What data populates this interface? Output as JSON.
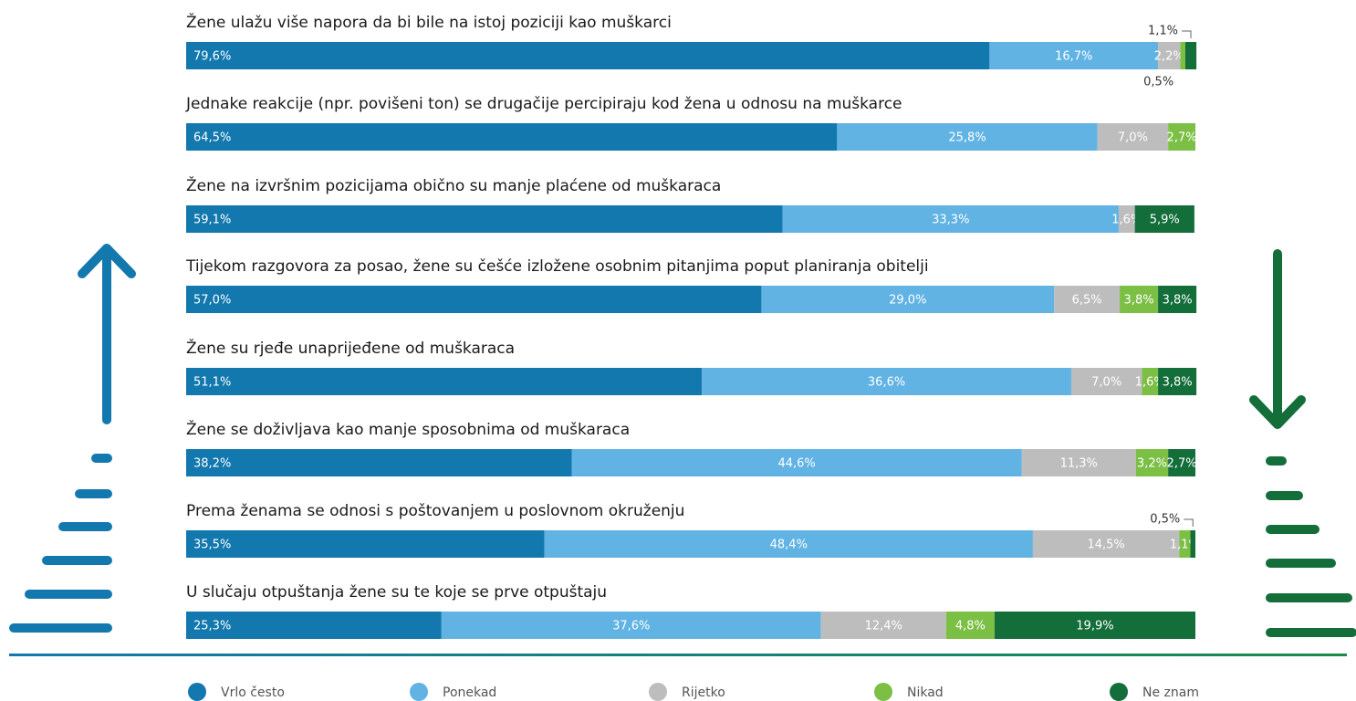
{
  "chart_data": {
    "type": "stacked-bar-100",
    "categories": [
      "Žene ulažu više napora da bi bile na istoj poziciji kao muškarci",
      "Jednake reakcije (npr. povišeni ton) se drugačije percipiraju kod žena u odnosu na muškarce",
      "Žene na izvršnim pozicijama obično su manje plaćene od muškaraca",
      "Tijekom razgovora za posao, žene su češće izložene osobnim pitanjima poput planiranja obitelji",
      "Žene su rjeđe unaprijeđene od muškaraca",
      "Žene se doživljava kao manje sposobnima od muškaraca",
      "Prema ženama se odnosi s poštovanjem u poslovnom okruženju",
      "U slučaju otpuštanja žene su te koje se prve otpuštaju"
    ],
    "xlim": [
      0,
      100
    ],
    "series": [
      {
        "name": "Vrlo često",
        "color": "#1378ae",
        "values": [
          79.6,
          64.5,
          59.1,
          57.0,
          51.1,
          38.2,
          35.5,
          25.3
        ],
        "value_labels": [
          "79,6%",
          "64,5%",
          "59,1%",
          "57,0%",
          "51,1%",
          "38,2%",
          "35,5%",
          "25,3%"
        ]
      },
      {
        "name": "Ponekad",
        "color": "#61b3e4",
        "values": [
          16.7,
          25.8,
          33.3,
          29.0,
          36.6,
          44.6,
          48.4,
          37.6
        ],
        "value_labels": [
          "16,7%",
          "25,8%",
          "33,3%",
          "29,0%",
          "36,6%",
          "44,6%",
          "48,4%",
          "37,6%"
        ]
      },
      {
        "name": "Rijetko",
        "color": "#bdbdbd",
        "values": [
          2.2,
          7.0,
          1.6,
          6.5,
          7.0,
          11.3,
          14.5,
          12.4
        ],
        "value_labels": [
          "2,2%",
          "7,0%",
          "1,6%",
          "6,5%",
          "7,0%",
          "11,3%",
          "14,5%",
          "12,4%"
        ]
      },
      {
        "name": "Nikad",
        "color": "#7cbf45",
        "values": [
          0.5,
          2.7,
          null,
          3.8,
          1.6,
          3.2,
          1.1,
          4.8
        ],
        "value_labels": [
          "0,5%",
          "2,7%",
          null,
          "3,8%",
          "1,6%",
          "3,2%",
          "1,1%",
          "4,8%"
        ]
      },
      {
        "name": "Ne znam",
        "color": "#136e3a",
        "values": [
          1.1,
          null,
          5.9,
          3.8,
          3.8,
          2.7,
          0.5,
          19.9
        ],
        "value_labels": [
          "1,1%",
          null,
          "5,9%",
          "3,8%",
          "3,8%",
          "2,7%",
          "0,5%",
          "19,9%"
        ]
      }
    ]
  }
}
